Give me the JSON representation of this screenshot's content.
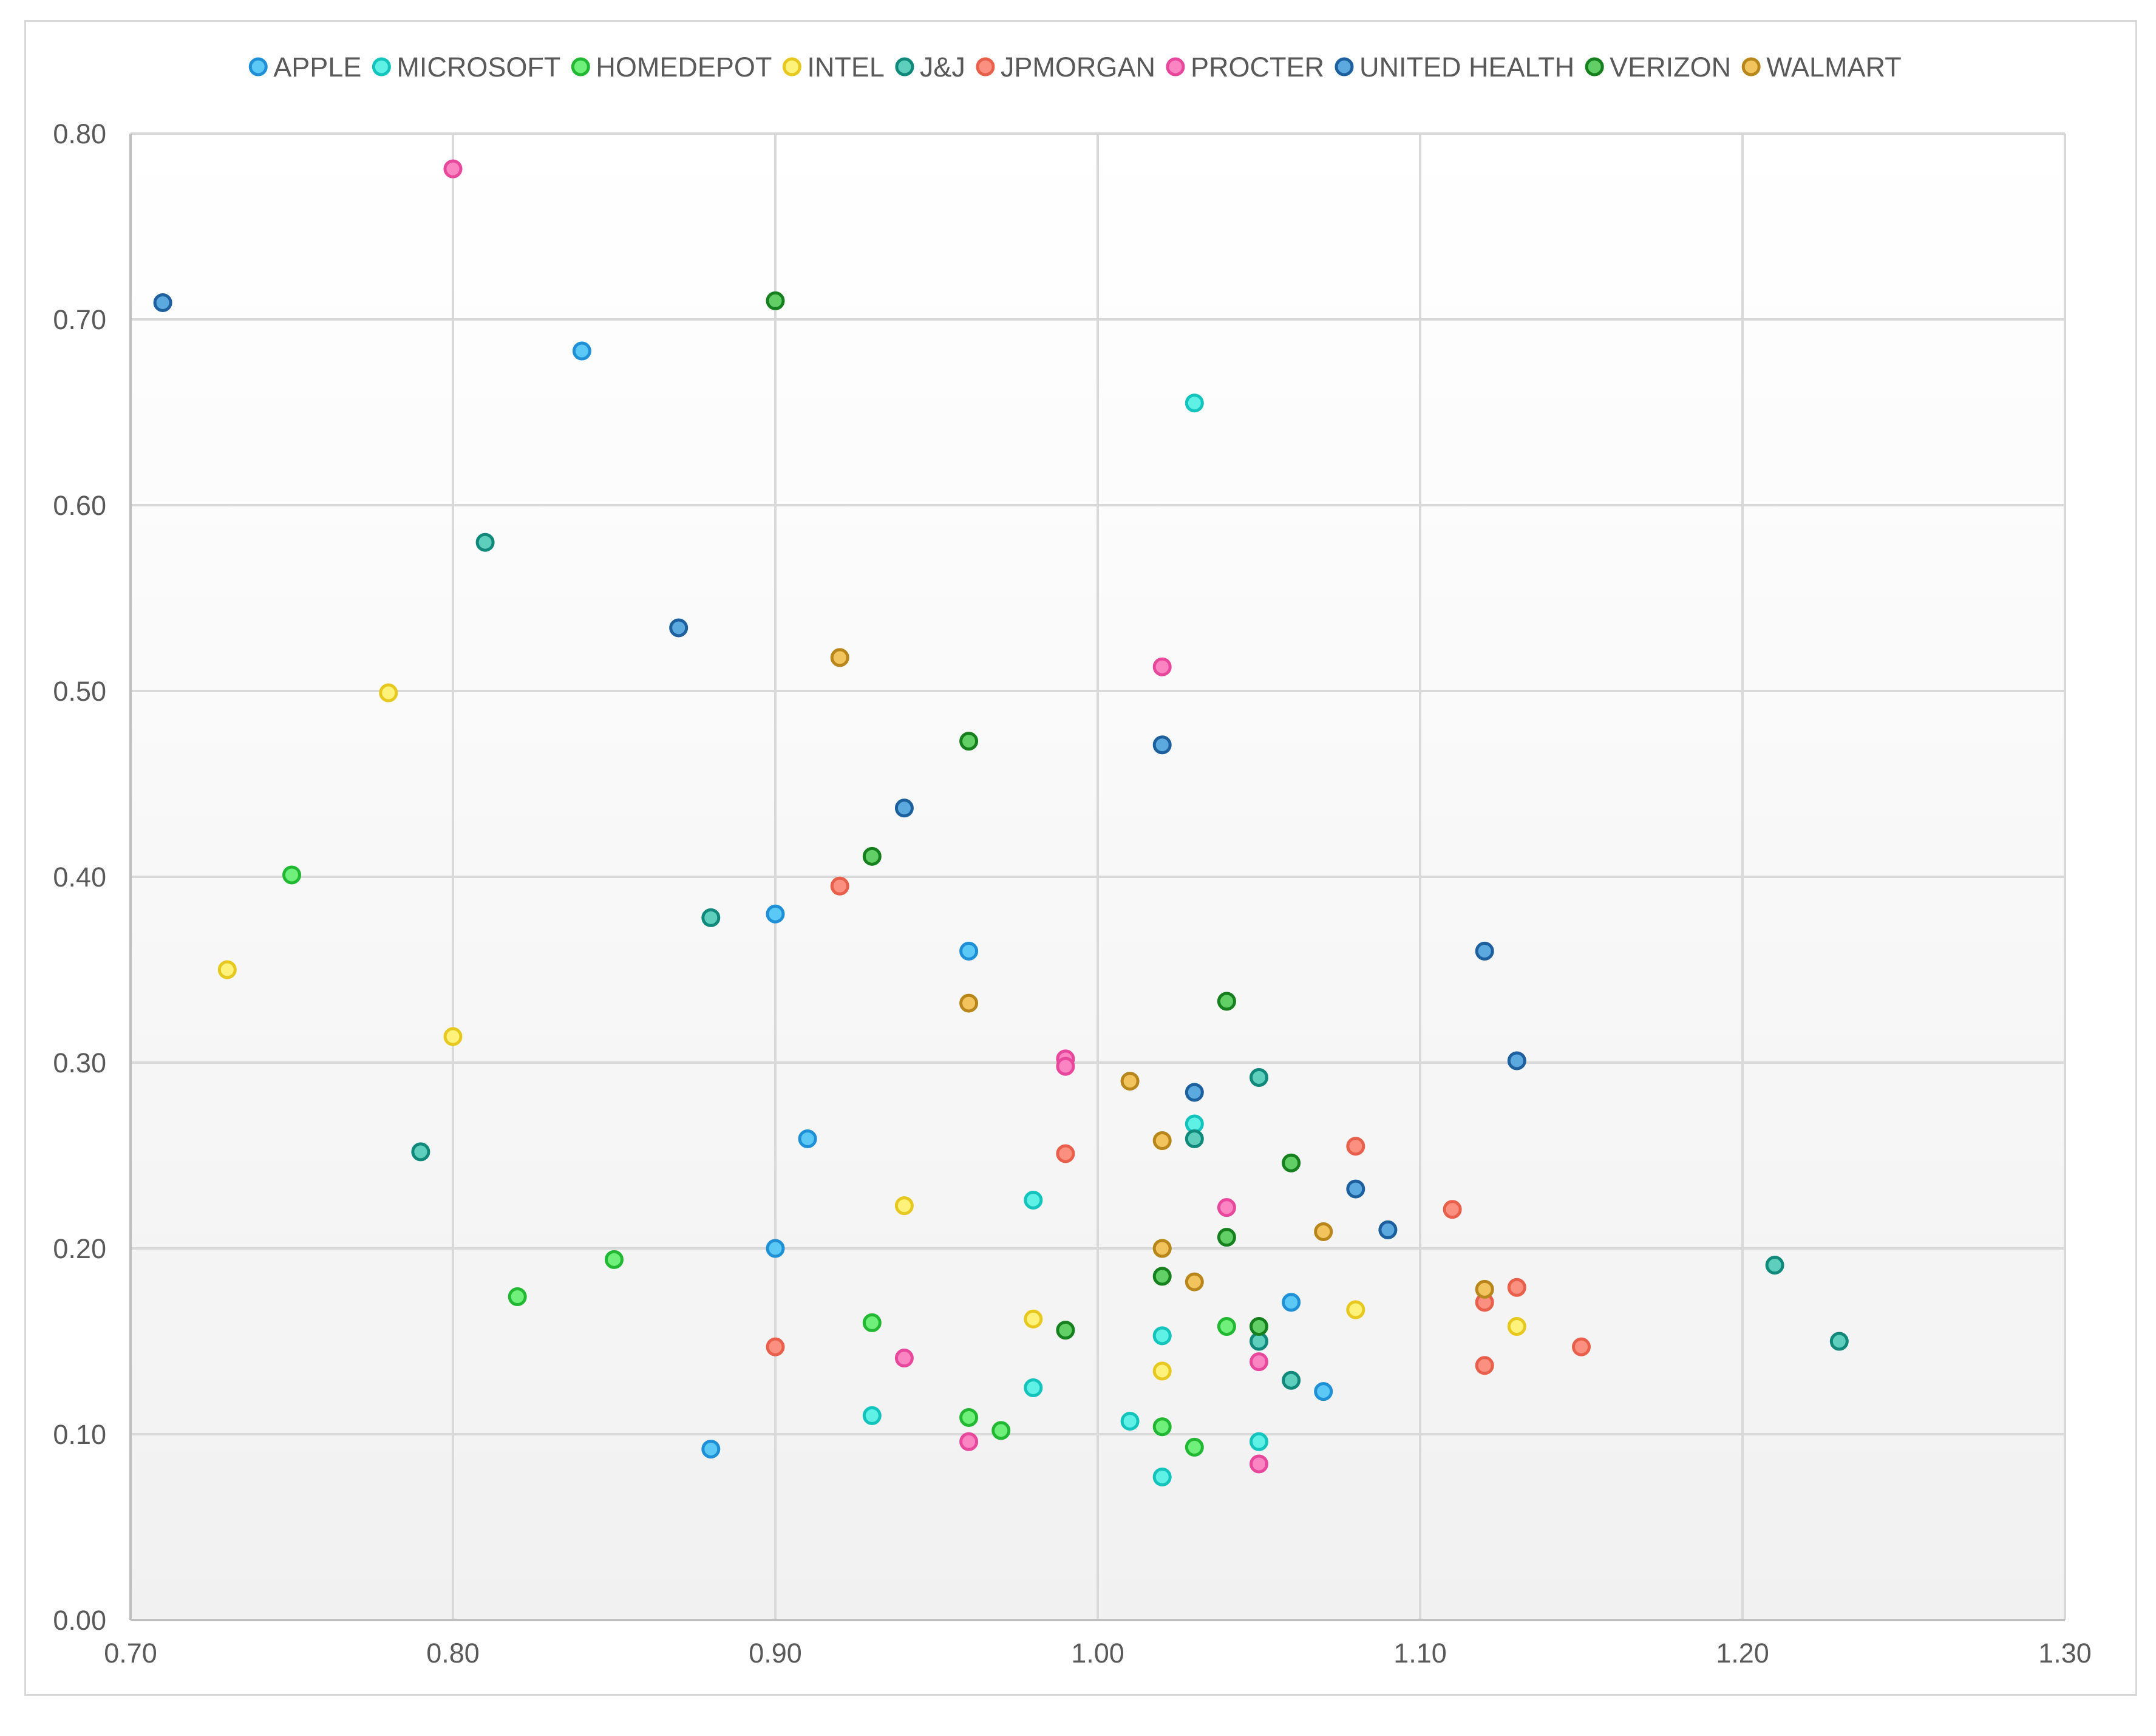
{
  "chart_data": {
    "type": "scatter",
    "title": "",
    "xlabel": "",
    "ylabel": "",
    "xlim": [
      0.7,
      1.3
    ],
    "ylim": [
      0.0,
      0.8
    ],
    "x_ticks": [
      "0.70",
      "0.80",
      "0.90",
      "1.00",
      "1.10",
      "1.20",
      "1.30"
    ],
    "y_ticks": [
      "0.00",
      "0.10",
      "0.20",
      "0.30",
      "0.40",
      "0.50",
      "0.60",
      "0.70",
      "0.80"
    ],
    "grid": true,
    "legend_position": "top",
    "series": [
      {
        "name": "APPLE",
        "fill": "#5bc8f5",
        "stroke": "#1f8fd6",
        "points": [
          [
            0.84,
            0.683
          ],
          [
            0.9,
            0.38
          ],
          [
            0.96,
            0.36
          ],
          [
            0.91,
            0.259
          ],
          [
            0.9,
            0.2
          ],
          [
            0.88,
            0.092
          ],
          [
            1.06,
            0.171
          ],
          [
            1.07,
            0.123
          ]
        ]
      },
      {
        "name": "MICROSOFT",
        "fill": "#5ff0e6",
        "stroke": "#13c4bd",
        "points": [
          [
            1.03,
            0.655
          ],
          [
            1.03,
            0.267
          ],
          [
            0.98,
            0.226
          ],
          [
            1.02,
            0.153
          ],
          [
            0.98,
            0.125
          ],
          [
            0.93,
            0.11
          ],
          [
            1.01,
            0.107
          ],
          [
            1.05,
            0.096
          ],
          [
            1.02,
            0.077
          ]
        ]
      },
      {
        "name": "HOMEDEPOT",
        "fill": "#6ef07a",
        "stroke": "#22b833",
        "points": [
          [
            0.75,
            0.401
          ],
          [
            0.85,
            0.194
          ],
          [
            0.82,
            0.174
          ],
          [
            0.93,
            0.16
          ],
          [
            0.96,
            0.109
          ],
          [
            0.97,
            0.102
          ],
          [
            1.02,
            0.104
          ],
          [
            1.03,
            0.093
          ],
          [
            1.04,
            0.158
          ]
        ]
      },
      {
        "name": "INTEL",
        "fill": "#fff27a",
        "stroke": "#e6c81e",
        "points": [
          [
            0.78,
            0.499
          ],
          [
            0.73,
            0.35
          ],
          [
            0.8,
            0.314
          ],
          [
            0.94,
            0.223
          ],
          [
            0.98,
            0.162
          ],
          [
            1.02,
            0.2
          ],
          [
            1.02,
            0.134
          ],
          [
            1.08,
            0.167
          ],
          [
            1.13,
            0.158
          ]
        ]
      },
      {
        "name": "J&J",
        "fill": "#5fcfbd",
        "stroke": "#11897a",
        "points": [
          [
            0.81,
            0.58
          ],
          [
            0.88,
            0.378
          ],
          [
            0.79,
            0.252
          ],
          [
            1.05,
            0.292
          ],
          [
            1.03,
            0.259
          ],
          [
            1.05,
            0.15
          ],
          [
            1.06,
            0.129
          ],
          [
            1.21,
            0.191
          ],
          [
            1.23,
            0.15
          ]
        ]
      },
      {
        "name": "JPMORGAN",
        "fill": "#fb8f80",
        "stroke": "#e8604b",
        "points": [
          [
            0.92,
            0.395
          ],
          [
            0.99,
            0.251
          ],
          [
            0.9,
            0.147
          ],
          [
            1.08,
            0.255
          ],
          [
            1.11,
            0.221
          ],
          [
            1.12,
            0.171
          ],
          [
            1.13,
            0.179
          ],
          [
            1.12,
            0.137
          ],
          [
            1.15,
            0.147
          ]
        ]
      },
      {
        "name": "PROCTER",
        "fill": "#fb84c2",
        "stroke": "#e8489c",
        "points": [
          [
            0.8,
            0.781
          ],
          [
            1.02,
            0.513
          ],
          [
            0.99,
            0.302
          ],
          [
            0.99,
            0.298
          ],
          [
            1.04,
            0.222
          ],
          [
            0.94,
            0.141
          ],
          [
            0.96,
            0.096
          ],
          [
            1.05,
            0.139
          ],
          [
            1.05,
            0.084
          ]
        ]
      },
      {
        "name": "UNITED HEALTH",
        "fill": "#5ba9df",
        "stroke": "#1e5f9e",
        "points": [
          [
            0.71,
            0.709
          ],
          [
            0.87,
            0.534
          ],
          [
            1.02,
            0.471
          ],
          [
            0.94,
            0.437
          ],
          [
            1.12,
            0.36
          ],
          [
            1.13,
            0.301
          ],
          [
            1.03,
            0.284
          ],
          [
            1.08,
            0.232
          ],
          [
            1.09,
            0.21
          ]
        ]
      },
      {
        "name": "VERIZON",
        "fill": "#62cf66",
        "stroke": "#15801d",
        "points": [
          [
            0.9,
            0.71
          ],
          [
            0.96,
            0.473
          ],
          [
            0.93,
            0.411
          ],
          [
            1.04,
            0.333
          ],
          [
            1.06,
            0.246
          ],
          [
            1.04,
            0.206
          ],
          [
            1.02,
            0.185
          ],
          [
            0.99,
            0.156
          ],
          [
            1.05,
            0.158
          ]
        ]
      },
      {
        "name": "WALMART",
        "fill": "#f2c45e",
        "stroke": "#b8861b",
        "points": [
          [
            0.92,
            0.518
          ],
          [
            0.96,
            0.332
          ],
          [
            1.01,
            0.29
          ],
          [
            1.02,
            0.258
          ],
          [
            1.02,
            0.2
          ],
          [
            1.03,
            0.182
          ],
          [
            1.07,
            0.209
          ],
          [
            1.12,
            0.178
          ]
        ]
      }
    ]
  }
}
